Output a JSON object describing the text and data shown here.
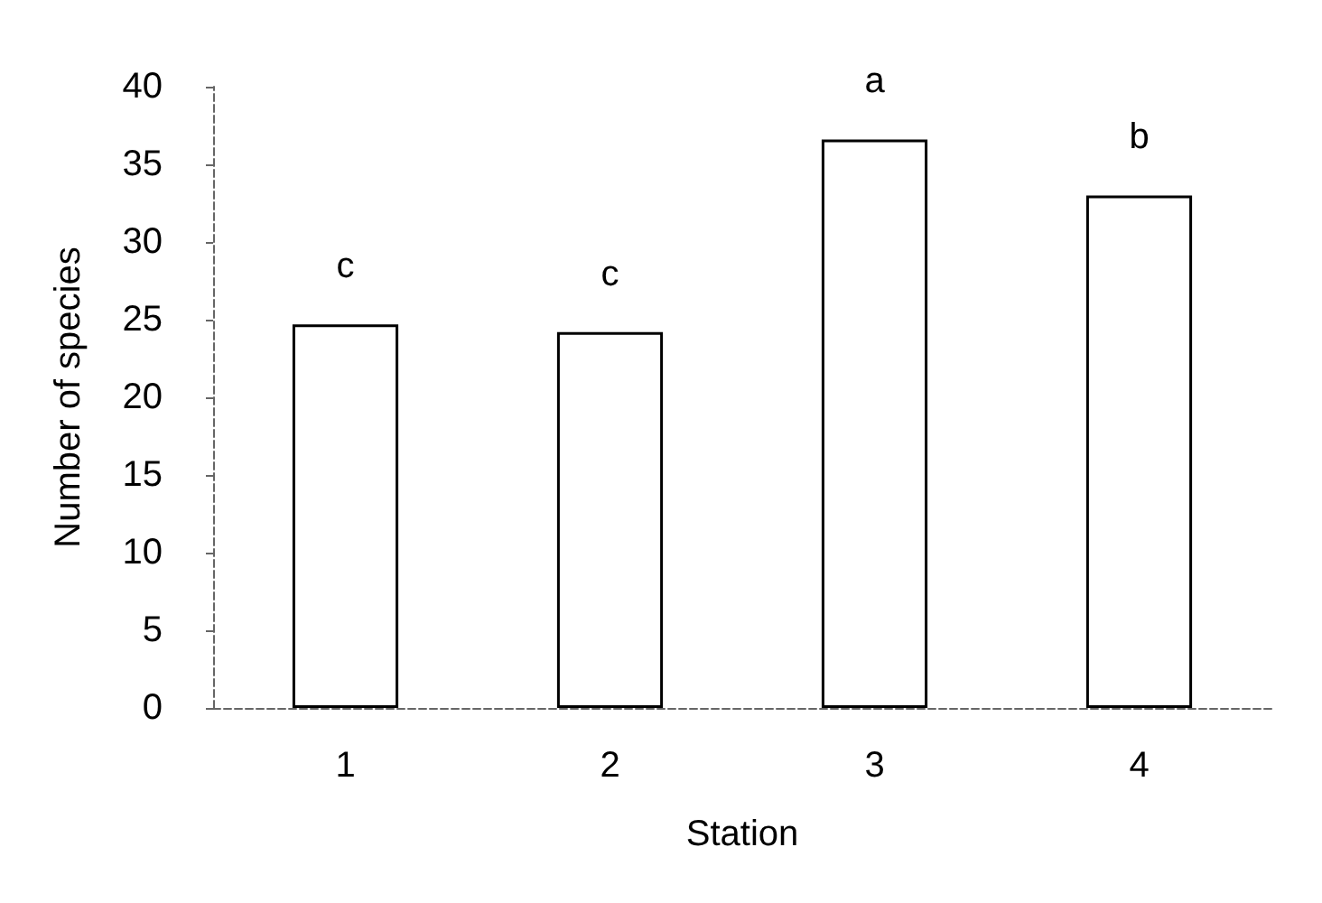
{
  "chart_data": {
    "type": "bar",
    "xlabel": "Station",
    "ylabel": "Number of species",
    "categories": [
      "1",
      "2",
      "3",
      "4"
    ],
    "values": [
      24.7,
      24.2,
      36.6,
      33.0
    ],
    "color": "#ffffff",
    "ylim": [
      0,
      40
    ],
    "yticks": [
      0,
      5,
      10,
      15,
      20,
      25,
      30,
      35,
      40
    ],
    "grid": false,
    "annotations": [
      {
        "text": "c",
        "x": "1",
        "y": 24.7
      },
      {
        "text": "c",
        "x": "2",
        "y": 24.2
      },
      {
        "text": "a",
        "x": "3",
        "y": 36.6
      },
      {
        "text": "b",
        "x": "4",
        "y": 33.0
      }
    ]
  }
}
